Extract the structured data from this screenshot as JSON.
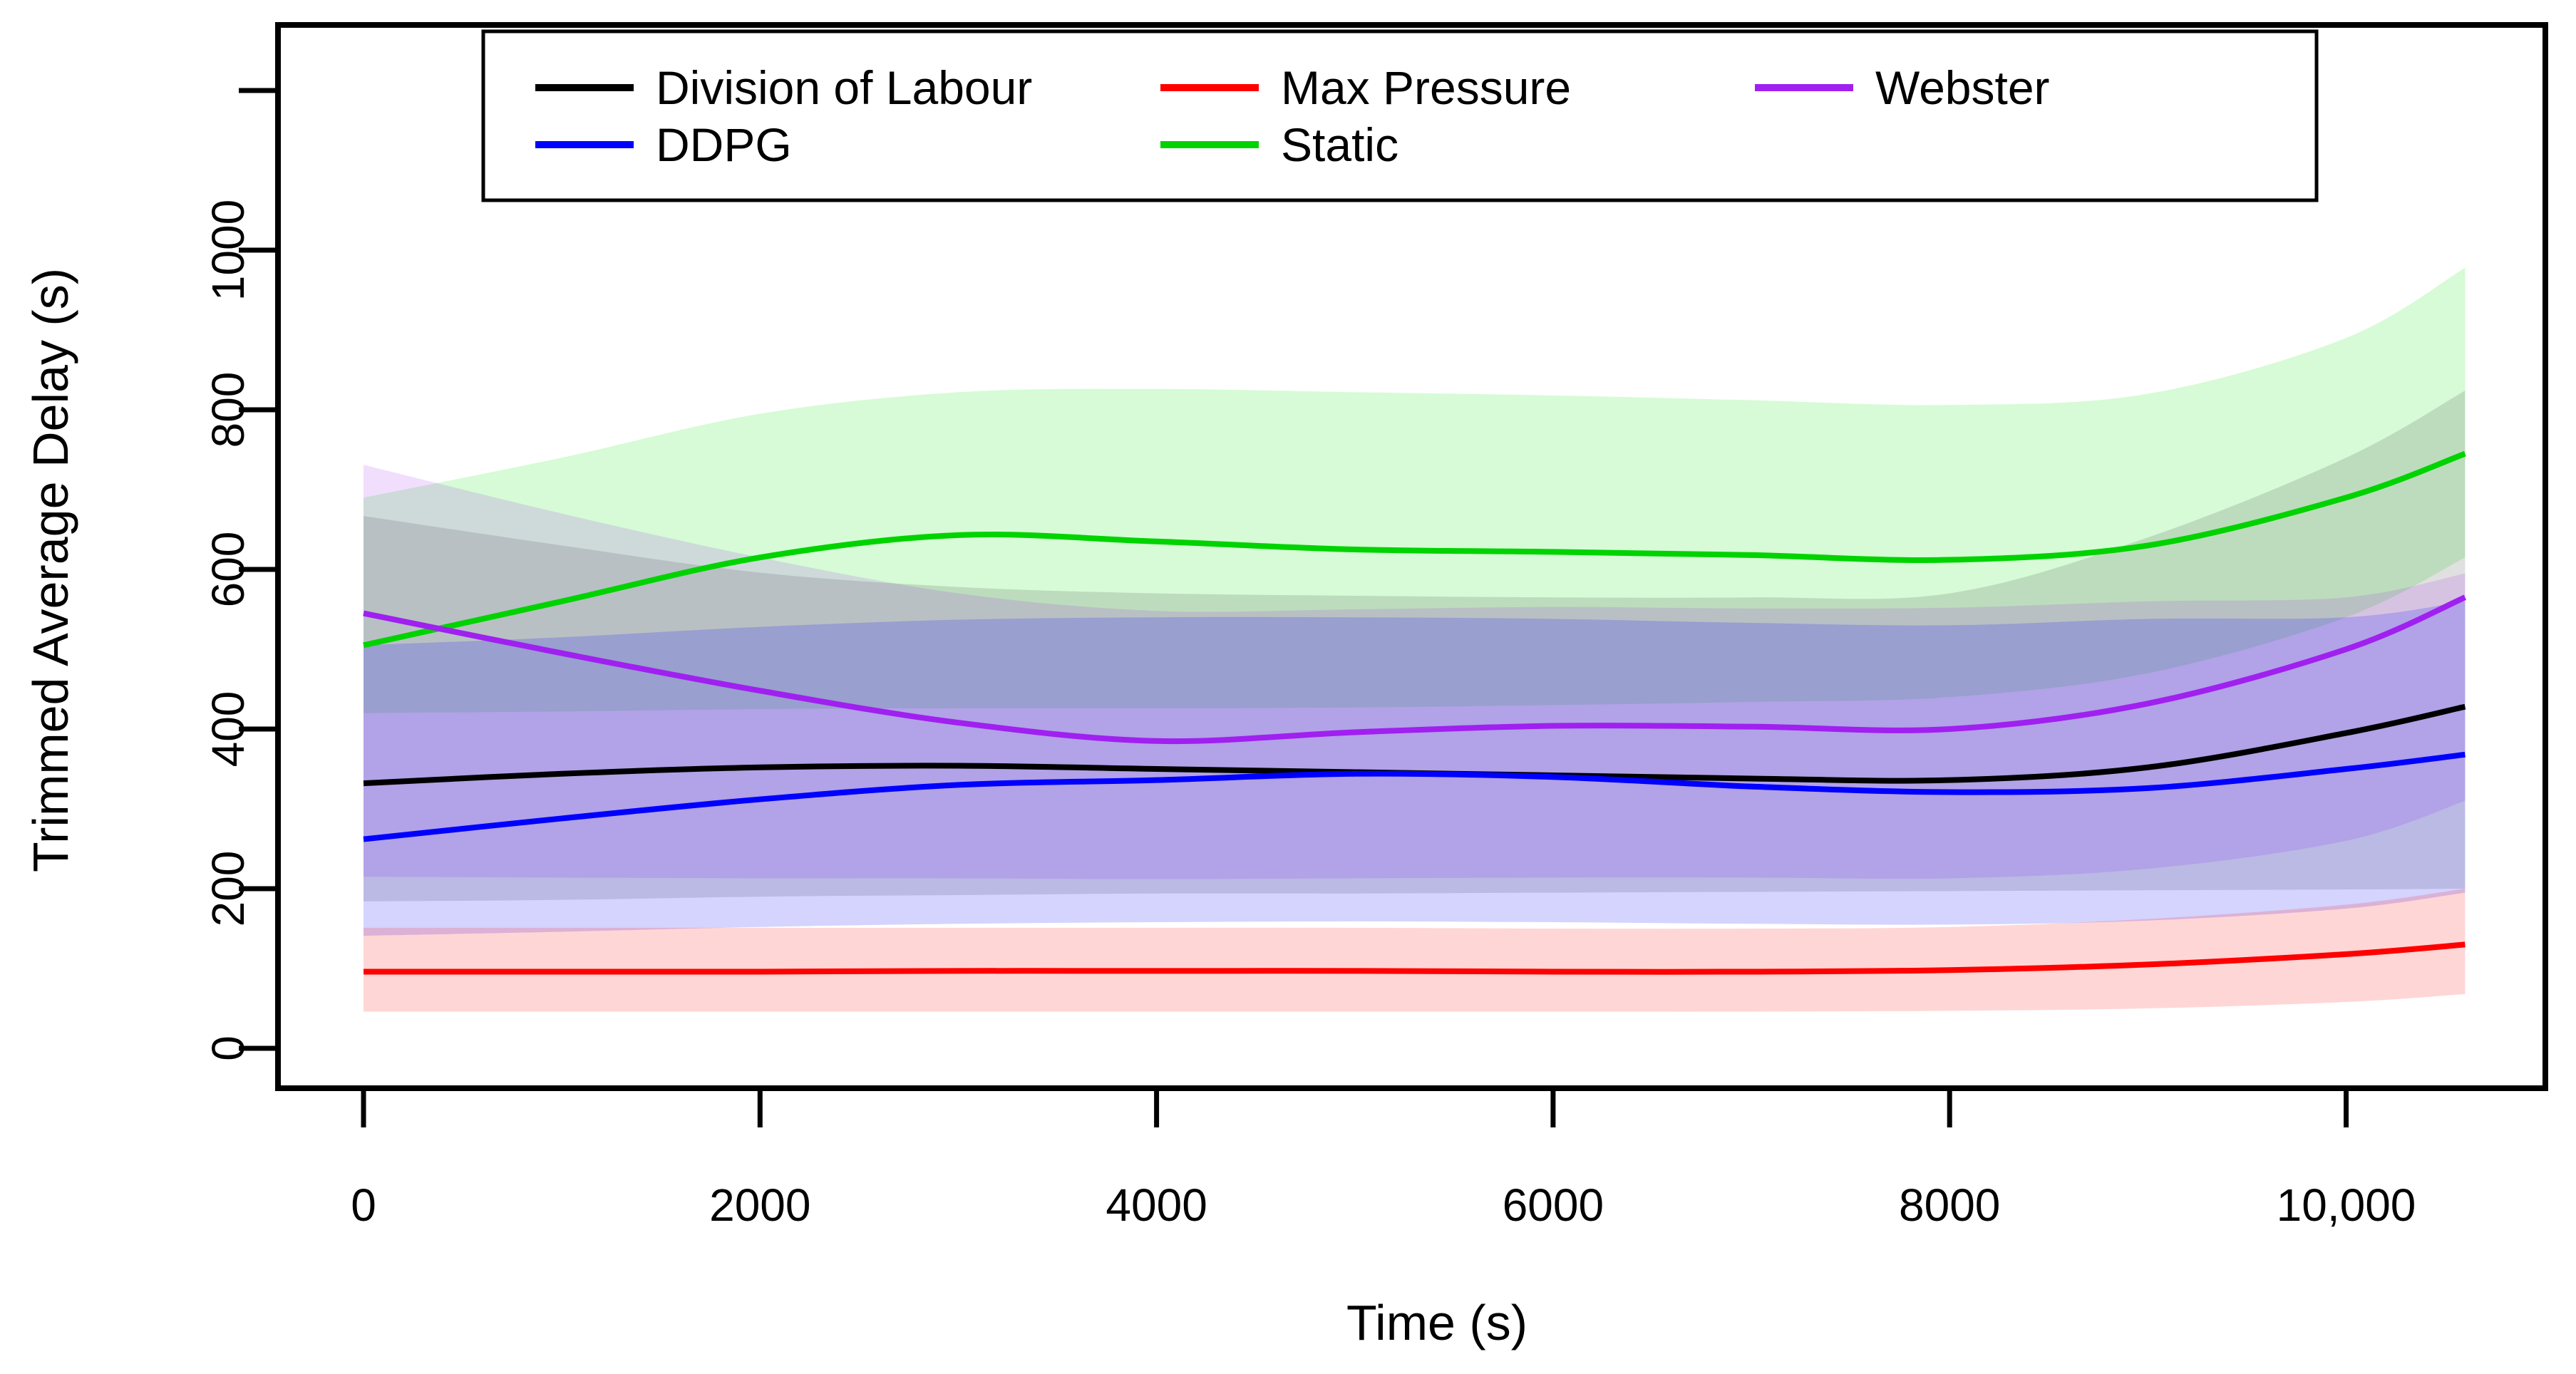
{
  "chart_data": {
    "type": "line",
    "title": "",
    "xlabel": "Time (s)",
    "ylabel": "Trimmed Average Delay (s)",
    "xlim": [
      0,
      11000
    ],
    "ylim": [
      0,
      1250
    ],
    "grid": false,
    "legend_position": "top-inside-box",
    "x_ticks": {
      "values": [
        0,
        2000,
        4000,
        6000,
        8000,
        10000
      ],
      "labels": [
        "0",
        "2000",
        "4000",
        "6000",
        "8000",
        "10,000"
      ]
    },
    "y_ticks": {
      "values": [
        0,
        200,
        400,
        600,
        800,
        1000,
        1200
      ],
      "labels": [
        "0",
        "200",
        "400",
        "600",
        "800",
        "1000",
        ""
      ]
    },
    "x": [
      0,
      1000,
      2000,
      3000,
      4000,
      5000,
      6000,
      7000,
      8000,
      9000,
      10000,
      10600
    ],
    "series": [
      {
        "name": "Division of Labour",
        "color": "#000000",
        "band_color": "rgba(60,60,60,0.16)",
        "values": [
          332,
          344,
          352,
          354,
          350,
          346,
          342,
          338,
          336,
          352,
          395,
          428
        ],
        "lower": [
          184,
          186,
          190,
          192,
          194,
          194,
          195,
          196,
          197,
          198,
          199,
          200
        ],
        "upper": [
          667,
          630,
          596,
          578,
          570,
          567,
          565,
          565,
          570,
          640,
          740,
          824
        ]
      },
      {
        "name": "DDPG",
        "color": "#0000ff",
        "band_color": "rgba(0,0,255,0.17)",
        "values": [
          262,
          288,
          312,
          330,
          336,
          344,
          340,
          328,
          321,
          326,
          350,
          368
        ],
        "lower": [
          141,
          146,
          152,
          156,
          158,
          159,
          158,
          156,
          155,
          160,
          175,
          195
        ],
        "upper": [
          505,
          515,
          528,
          537,
          540,
          540,
          538,
          533,
          530,
          538,
          540,
          560
        ]
      },
      {
        "name": "Max Pressure",
        "color": "#ff0000",
        "band_color": "rgba(255,0,0,0.16)",
        "values": [
          96,
          96,
          96,
          97,
          97,
          97,
          96,
          96,
          98,
          105,
          118,
          130
        ],
        "lower": [
          46,
          46,
          46,
          46,
          46,
          46,
          46,
          46,
          47,
          50,
          58,
          68
        ],
        "upper": [
          151,
          151,
          151,
          151,
          151,
          151,
          150,
          150,
          152,
          162,
          180,
          200
        ]
      },
      {
        "name": "Static",
        "color": "#00d300",
        "band_color": "rgba(0,230,0,0.16)",
        "values": [
          505,
          560,
          615,
          643,
          635,
          625,
          622,
          618,
          612,
          630,
          690,
          745
        ],
        "lower": [
          420,
          422,
          425,
          426,
          426,
          427,
          430,
          434,
          440,
          470,
          540,
          615
        ],
        "upper": [
          690,
          740,
          795,
          822,
          826,
          822,
          818,
          812,
          806,
          820,
          890,
          978
        ]
      },
      {
        "name": "Webster",
        "color": "#a020f0",
        "band_color": "rgba(160,32,240,0.15)",
        "values": [
          545,
          495,
          448,
          408,
          385,
          396,
          404,
          403,
          400,
          432,
          500,
          565
        ],
        "lower": [
          215,
          214,
          213,
          213,
          212,
          213,
          214,
          214,
          213,
          225,
          260,
          310
        ],
        "upper": [
          731,
          670,
          615,
          570,
          548,
          550,
          553,
          551,
          552,
          560,
          565,
          595
        ]
      }
    ],
    "band_draw_order": [
      "Static",
      "Division of Labour",
      "Webster",
      "DDPG",
      "Max Pressure"
    ],
    "line_draw_order": [
      "Division of Labour",
      "DDPG",
      "Max Pressure",
      "Static",
      "Webster"
    ]
  },
  "legend": {
    "items": [
      {
        "label": "Division of Labour",
        "color": "#000000"
      },
      {
        "label": "Max Pressure",
        "color": "#ff0000"
      },
      {
        "label": "Webster",
        "color": "#a020f0"
      },
      {
        "label": "DDPG",
        "color": "#0000ff"
      },
      {
        "label": "Static",
        "color": "#00d300"
      }
    ]
  }
}
